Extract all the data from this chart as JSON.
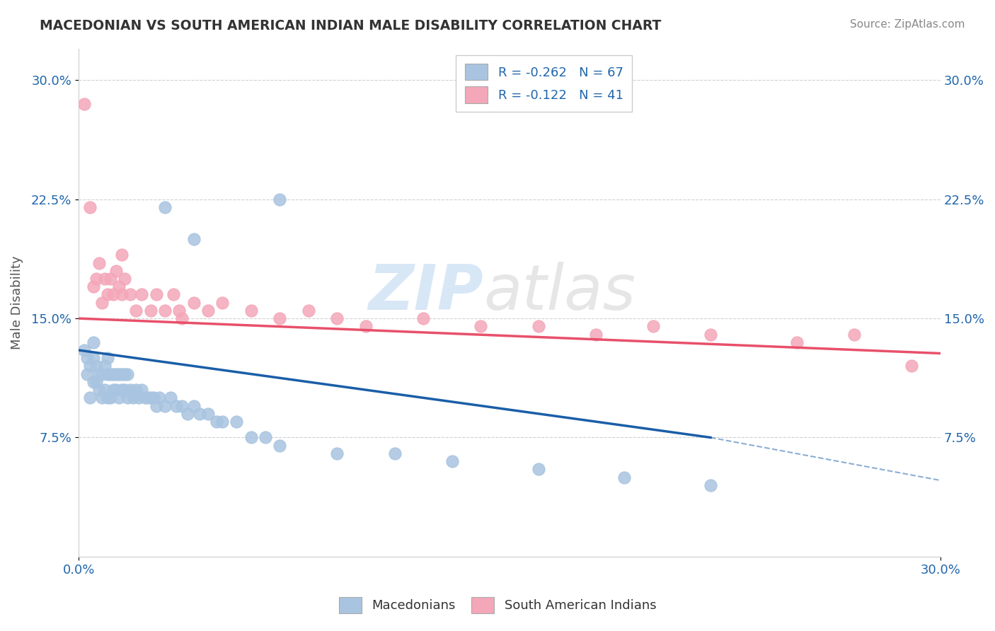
{
  "title": "MACEDONIAN VS SOUTH AMERICAN INDIAN MALE DISABILITY CORRELATION CHART",
  "source": "Source: ZipAtlas.com",
  "ylabel": "Male Disability",
  "xlim": [
    0.0,
    0.3
  ],
  "ylim": [
    0.0,
    0.32
  ],
  "xtick_labels": [
    "0.0%",
    "30.0%"
  ],
  "ytick_positions": [
    0.075,
    0.15,
    0.225,
    0.3
  ],
  "ytick_labels": [
    "7.5%",
    "15.0%",
    "22.5%",
    "30.0%"
  ],
  "legend1_r": "-0.262",
  "legend1_n": "67",
  "legend2_r": "-0.122",
  "legend2_n": "41",
  "blue_color": "#a8c4e0",
  "pink_color": "#f4a7b9",
  "blue_line_color": "#1a5ea8",
  "pink_line_color": "#e8506a",
  "watermark_zip": "ZIP",
  "watermark_atlas": "atlas",
  "blue_line_x0": 0.0,
  "blue_line_y0": 0.13,
  "blue_line_x1": 0.22,
  "blue_line_y1": 0.075,
  "pink_line_x0": 0.0,
  "pink_line_y0": 0.15,
  "pink_line_x1": 0.3,
  "pink_line_y1": 0.128,
  "dash_line_x0": 0.22,
  "dash_line_y0": 0.075,
  "dash_line_x1": 0.3,
  "dash_line_y1": 0.048,
  "macedonians_scatter_x": [
    0.002,
    0.003,
    0.003,
    0.004,
    0.004,
    0.005,
    0.005,
    0.005,
    0.006,
    0.006,
    0.007,
    0.007,
    0.008,
    0.008,
    0.009,
    0.009,
    0.01,
    0.01,
    0.01,
    0.011,
    0.011,
    0.012,
    0.012,
    0.013,
    0.013,
    0.014,
    0.014,
    0.015,
    0.015,
    0.016,
    0.016,
    0.017,
    0.017,
    0.018,
    0.019,
    0.02,
    0.021,
    0.022,
    0.023,
    0.024,
    0.025,
    0.026,
    0.027,
    0.028,
    0.03,
    0.032,
    0.034,
    0.036,
    0.038,
    0.04,
    0.042,
    0.045,
    0.048,
    0.05,
    0.055,
    0.06,
    0.065,
    0.07,
    0.09,
    0.11,
    0.13,
    0.16,
    0.19,
    0.22,
    0.03,
    0.04,
    0.07
  ],
  "macedonians_scatter_y": [
    0.13,
    0.115,
    0.125,
    0.1,
    0.12,
    0.11,
    0.125,
    0.135,
    0.11,
    0.12,
    0.105,
    0.115,
    0.1,
    0.115,
    0.105,
    0.12,
    0.1,
    0.115,
    0.125,
    0.1,
    0.115,
    0.105,
    0.115,
    0.105,
    0.115,
    0.1,
    0.115,
    0.105,
    0.115,
    0.105,
    0.115,
    0.1,
    0.115,
    0.105,
    0.1,
    0.105,
    0.1,
    0.105,
    0.1,
    0.1,
    0.1,
    0.1,
    0.095,
    0.1,
    0.095,
    0.1,
    0.095,
    0.095,
    0.09,
    0.095,
    0.09,
    0.09,
    0.085,
    0.085,
    0.085,
    0.075,
    0.075,
    0.07,
    0.065,
    0.065,
    0.06,
    0.055,
    0.05,
    0.045,
    0.22,
    0.2,
    0.225
  ],
  "sam_indian_scatter_x": [
    0.002,
    0.004,
    0.005,
    0.006,
    0.007,
    0.008,
    0.009,
    0.01,
    0.011,
    0.012,
    0.013,
    0.014,
    0.015,
    0.016,
    0.018,
    0.02,
    0.022,
    0.025,
    0.027,
    0.03,
    0.033,
    0.036,
    0.04,
    0.045,
    0.05,
    0.06,
    0.07,
    0.08,
    0.09,
    0.1,
    0.12,
    0.14,
    0.16,
    0.18,
    0.2,
    0.22,
    0.25,
    0.27,
    0.29,
    0.015,
    0.035
  ],
  "sam_indian_scatter_y": [
    0.285,
    0.22,
    0.17,
    0.175,
    0.185,
    0.16,
    0.175,
    0.165,
    0.175,
    0.165,
    0.18,
    0.17,
    0.165,
    0.175,
    0.165,
    0.155,
    0.165,
    0.155,
    0.165,
    0.155,
    0.165,
    0.15,
    0.16,
    0.155,
    0.16,
    0.155,
    0.15,
    0.155,
    0.15,
    0.145,
    0.15,
    0.145,
    0.145,
    0.14,
    0.145,
    0.14,
    0.135,
    0.14,
    0.12,
    0.19,
    0.155
  ]
}
